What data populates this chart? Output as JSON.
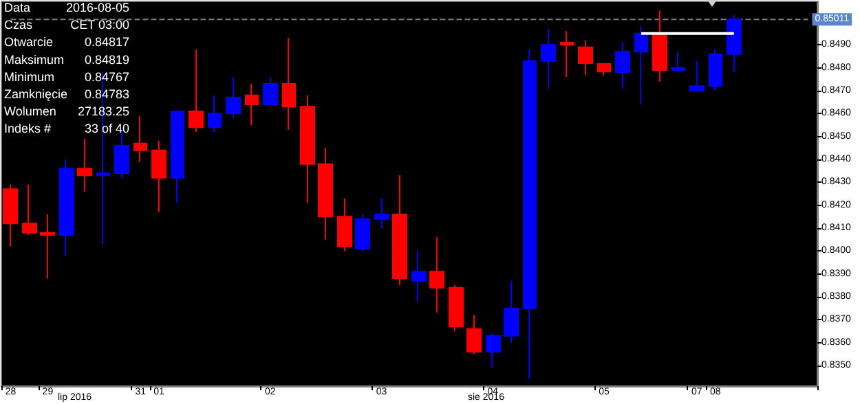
{
  "chart_data": {
    "type": "candlestick",
    "categories": [
      "28",
      null,
      "29",
      null,
      null,
      null,
      null,
      "31",
      "01",
      null,
      null,
      null,
      null,
      null,
      "02",
      null,
      null,
      null,
      null,
      null,
      "03",
      null,
      null,
      null,
      null,
      null,
      "04",
      null,
      null,
      null,
      null,
      null,
      "05",
      null,
      null,
      null,
      null,
      "07",
      "08",
      null,
      null,
      null,
      null,
      null
    ],
    "series": [
      {
        "ohlc": [
          [
            0.8427,
            0.8429,
            0.8402,
            0.8412
          ],
          [
            0.8412,
            0.8429,
            0.8407,
            0.8408
          ],
          [
            0.8408,
            0.8416,
            0.8388,
            0.8407
          ],
          [
            0.8407,
            0.844,
            0.8398,
            0.8436
          ],
          [
            0.8436,
            0.8449,
            0.8426,
            0.8433
          ],
          [
            0.8433,
            0.8478,
            0.8403,
            0.8434
          ],
          [
            0.8434,
            0.8453,
            0.8432,
            0.8446
          ],
          [
            0.8447,
            0.8459,
            0.8439,
            0.8444
          ],
          [
            0.8444,
            0.8448,
            0.8417,
            0.8432
          ],
          [
            0.8432,
            0.8461,
            0.8421,
            0.8461
          ],
          [
            0.8461,
            0.8488,
            0.8452,
            0.8454
          ],
          [
            0.8454,
            0.8468,
            0.8452,
            0.846
          ],
          [
            0.846,
            0.8476,
            0.8458,
            0.8467
          ],
          [
            0.8468,
            0.8473,
            0.8455,
            0.8464
          ],
          [
            0.8464,
            0.8476,
            0.8464,
            0.8473
          ],
          [
            0.8473,
            0.8493,
            0.8453,
            0.8463
          ],
          [
            0.8463,
            0.8468,
            0.8421,
            0.8438
          ],
          [
            0.8438,
            0.8445,
            0.8405,
            0.8415
          ],
          [
            0.8415,
            0.8423,
            0.84,
            0.8402
          ],
          [
            0.8401,
            0.8416,
            0.84,
            0.8414
          ],
          [
            0.8414,
            0.8423,
            0.841,
            0.8416
          ],
          [
            0.8416,
            0.8433,
            0.8385,
            0.8388
          ],
          [
            0.8387,
            0.84,
            0.8378,
            0.8391
          ],
          [
            0.8391,
            0.8406,
            0.8373,
            0.8384
          ],
          [
            0.8384,
            0.8385,
            0.8365,
            0.8367
          ],
          [
            0.8366,
            0.8372,
            0.8355,
            0.8356
          ],
          [
            0.8356,
            0.8364,
            0.8349,
            0.8363
          ],
          [
            0.8363,
            0.8387,
            0.836,
            0.8375
          ],
          [
            0.8375,
            0.8488,
            0.8344,
            0.8483
          ],
          [
            0.8483,
            0.8497,
            0.8471,
            0.849
          ],
          [
            0.8491,
            0.8496,
            0.8476,
            0.849
          ],
          [
            0.8489,
            0.8492,
            0.8477,
            0.8482
          ],
          [
            0.84817,
            0.84819,
            0.84767,
            0.84783
          ],
          [
            0.8478,
            0.8491,
            0.8471,
            0.8487
          ],
          [
            0.8487,
            0.8498,
            0.8464,
            0.8495
          ],
          [
            0.8495,
            0.8505,
            0.8474,
            0.8479
          ],
          [
            0.8479,
            0.8487,
            0.8478,
            0.848
          ],
          [
            0.847,
            0.8483,
            0.847,
            0.8472
          ],
          [
            0.8472,
            0.8488,
            0.847,
            0.8486
          ],
          [
            0.8486,
            0.8503,
            0.8478,
            0.85011
          ],
          null,
          null,
          null,
          null
        ],
        "colors": [
          "#ff0000",
          "#ff0000",
          "#ff0000",
          "#0000ff",
          "#ff0000",
          "#0000ff",
          "#0000ff",
          "#ff0000",
          "#ff0000",
          "#0000ff",
          "#ff0000",
          "#0000ff",
          "#0000ff",
          "#ff0000",
          "#0000ff",
          "#ff0000",
          "#ff0000",
          "#ff0000",
          "#ff0000",
          "#0000ff",
          "#0000ff",
          "#ff0000",
          "#0000ff",
          "#ff0000",
          "#ff0000",
          "#ff0000",
          "#0000ff",
          "#0000ff",
          "#0000ff",
          "#0000ff",
          "#ff0000",
          "#ff0000",
          "#ff0000",
          "#0000ff",
          "#0000ff",
          "#ff0000",
          "#0000ff",
          "#0000ff",
          "#0000ff",
          "#0000ff",
          null,
          null,
          null,
          null
        ]
      },
      {
        "type": "line",
        "color": "#ffffff",
        "values": [
          null,
          null,
          null,
          null,
          null,
          null,
          null,
          null,
          null,
          null,
          null,
          null,
          null,
          null,
          null,
          null,
          null,
          null,
          null,
          null,
          null,
          null,
          null,
          null,
          null,
          null,
          null,
          null,
          null,
          null,
          null,
          null,
          null,
          null,
          0.8495,
          null,
          null,
          null,
          null,
          0.8495,
          null,
          null,
          null,
          null
        ]
      }
    ],
    "ylim": [
      0.8341,
      0.8509
    ],
    "yticks": [
      {
        "value": 0.835,
        "label": "0.8350"
      },
      {
        "value": 0.836,
        "label": "0.8360"
      },
      {
        "value": 0.837,
        "label": "0.8370"
      },
      {
        "value": 0.838,
        "label": "0.8380"
      },
      {
        "value": 0.839,
        "label": "0.8390"
      },
      {
        "value": 0.84,
        "label": "0.8400"
      },
      {
        "value": 0.841,
        "label": "0.8410"
      },
      {
        "value": 0.842,
        "label": "0.8420"
      },
      {
        "value": 0.843,
        "label": "0.8430"
      },
      {
        "value": 0.844,
        "label": "0.8440"
      },
      {
        "value": 0.845,
        "label": "0.8450"
      },
      {
        "value": 0.846,
        "label": "0.8460"
      },
      {
        "value": 0.847,
        "label": "0.8470"
      },
      {
        "value": 0.848,
        "label": "0.8480"
      },
      {
        "value": 0.849,
        "label": "0.8490"
      }
    ],
    "ref_lines": [
      {
        "axis": "y",
        "value": 0.85011,
        "label": "0.85011",
        "color": "#808080",
        "line_style": "dashed"
      }
    ],
    "grid": false,
    "annotations": [
      "Data",
      "2016-08-05",
      "Czas",
      "CET 03:00",
      "Otwarcie",
      "0.84817",
      "Maksimum",
      "0.84819",
      "Minimum",
      "0.84767",
      "Zamknięcie",
      "0.84783",
      "Wolumen",
      "27183.25",
      "Indeks #",
      "33 of 40",
      "lip 2016",
      "sie 2016"
    ]
  }
}
